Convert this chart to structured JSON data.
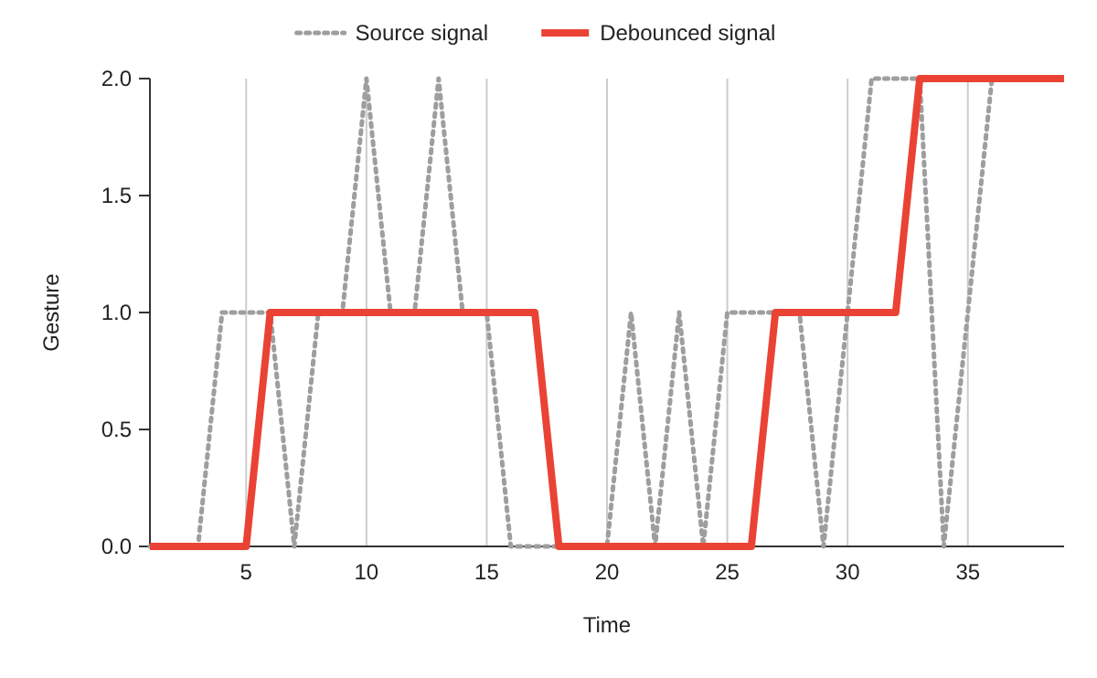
{
  "chart_data": {
    "type": "line",
    "xlabel": "Time",
    "ylabel": "Gesture",
    "x": [
      1,
      2,
      3,
      4,
      5,
      6,
      7,
      8,
      9,
      10,
      11,
      12,
      13,
      14,
      15,
      16,
      17,
      18,
      19,
      20,
      21,
      22,
      23,
      24,
      25,
      26,
      27,
      28,
      29,
      30,
      31,
      32,
      33,
      34,
      35,
      36,
      37,
      38,
      39
    ],
    "series": [
      {
        "name": "Source signal",
        "color": "#9e9e9e",
        "line_style": "dotted",
        "values": [
          0,
          0,
          0,
          1,
          1,
          1,
          0,
          1,
          1,
          2,
          1,
          1,
          2,
          1,
          1,
          0,
          0,
          0,
          0,
          0,
          1,
          0,
          1,
          0,
          1,
          1,
          1,
          1,
          0,
          1,
          2,
          2,
          2,
          0,
          1,
          2,
          null,
          null,
          null
        ]
      },
      {
        "name": "Debounced signal",
        "color": "#ea4335",
        "line_style": "solid",
        "values": [
          0,
          0,
          0,
          0,
          0,
          1,
          1,
          1,
          1,
          1,
          1,
          1,
          1,
          1,
          1,
          1,
          1,
          0,
          0,
          0,
          0,
          0,
          0,
          0,
          0,
          0,
          1,
          1,
          1,
          1,
          1,
          1,
          2,
          2,
          2,
          2,
          2,
          2,
          2
        ]
      }
    ],
    "xlim": [
      1,
      39
    ],
    "xticks": [
      5,
      10,
      15,
      20,
      25,
      30,
      35
    ],
    "ylim": [
      0,
      2
    ],
    "yticks": [
      {
        "value": 0,
        "label": "0.0"
      },
      {
        "value": 0.5,
        "label": "0.5"
      },
      {
        "value": 1,
        "label": "1.0"
      },
      {
        "value": 1.5,
        "label": "1.5"
      },
      {
        "value": 2,
        "label": "2.0"
      }
    ],
    "grid": "x",
    "legend": "top"
  }
}
